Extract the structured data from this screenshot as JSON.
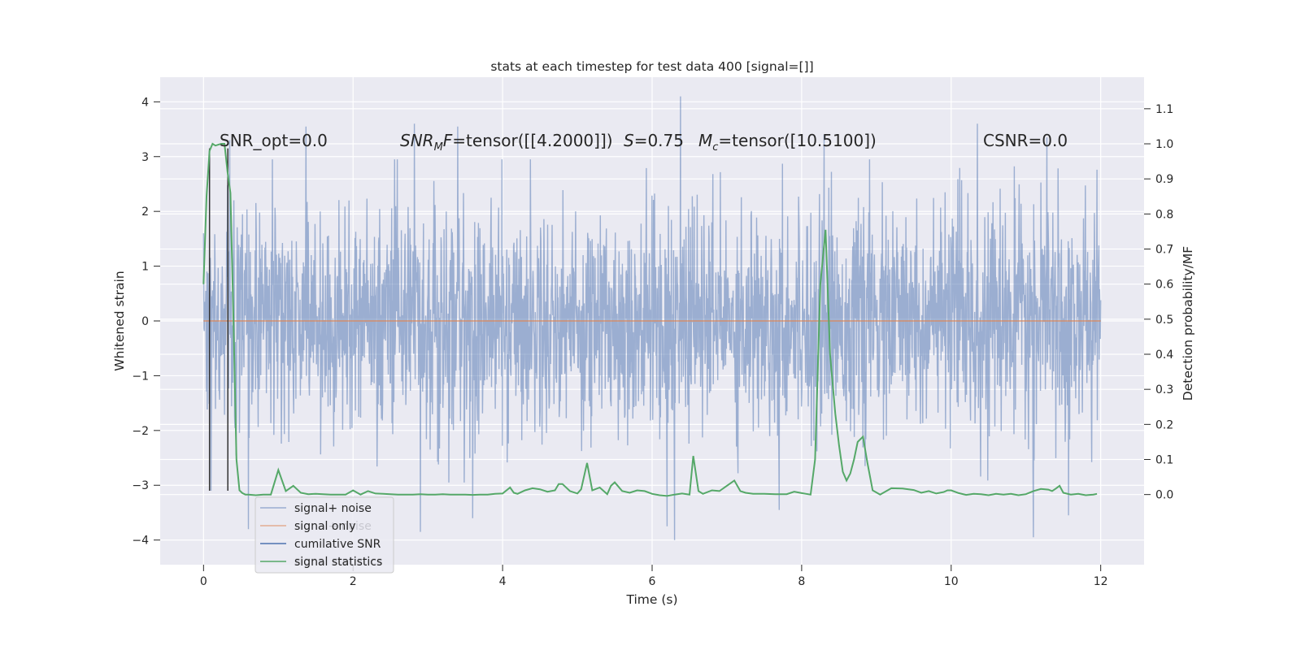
{
  "chart_data": {
    "type": "line",
    "title": "stats at each timestep for test data 400 [signal=[]]",
    "xlabel": "Time (s)",
    "ylabel_left": "Whitened strain",
    "ylabel_right": "Detection probability/MF",
    "xlim": [
      -0.58,
      12.58
    ],
    "ylim_left": [
      -4.45,
      4.45
    ],
    "ylim_right": [
      -0.2,
      1.19
    ],
    "xticks": [
      {
        "value": 0,
        "label": "0"
      },
      {
        "value": 2,
        "label": "2"
      },
      {
        "value": 4,
        "label": "4"
      },
      {
        "value": 6,
        "label": "6"
      },
      {
        "value": 8,
        "label": "8"
      },
      {
        "value": 10,
        "label": "10"
      },
      {
        "value": 12,
        "label": "12"
      }
    ],
    "yticks_left": [
      {
        "value": 4,
        "label": "4"
      },
      {
        "value": 3,
        "label": "3"
      },
      {
        "value": 2,
        "label": "2"
      },
      {
        "value": 1,
        "label": "1"
      },
      {
        "value": 0,
        "label": "0"
      },
      {
        "value": -1,
        "label": "−1"
      },
      {
        "value": -2,
        "label": "−2"
      },
      {
        "value": -3,
        "label": "−3"
      },
      {
        "value": -4,
        "label": "−4"
      }
    ],
    "yticks_right": [
      {
        "value": 1.1,
        "label": "1.1"
      },
      {
        "value": 1.0,
        "label": "1.0"
      },
      {
        "value": 0.9,
        "label": "0.9"
      },
      {
        "value": 0.8,
        "label": "0.8"
      },
      {
        "value": 0.7,
        "label": "0.7"
      },
      {
        "value": 0.6,
        "label": "0.6"
      },
      {
        "value": 0.5,
        "label": "0.5"
      },
      {
        "value": 0.4,
        "label": "0.4"
      },
      {
        "value": 0.3,
        "label": "0.3"
      },
      {
        "value": 0.2,
        "label": "0.2"
      },
      {
        "value": 0.1,
        "label": "0.1"
      },
      {
        "value": 0.0,
        "label": "0.0"
      }
    ],
    "annotations": {
      "snr_opt": "SNR_opt=0.0",
      "snr_mf_sym": "SNR",
      "snr_mf_sub": "M",
      "snr_mf_sym2": "F",
      "snr_mf_val": "=tensor([[4.2000]])",
      "s_sym": "S",
      "s_val": "=0.75",
      "mc_sym": "M",
      "mc_sub": "c",
      "mc_val": "=tensor([10.5100])",
      "csnr": "CSNR=0.0"
    },
    "legend": {
      "position": "lower-left",
      "entries": [
        "signal+ noise",
        "signal only",
        "cumilative SNR",
        "signal statistics"
      ],
      "ghost_entries": [
        "signal+ noise",
        "signal statistics"
      ]
    },
    "series": [
      {
        "name": "signal+ noise",
        "axis": "left",
        "color": "#4c72b0",
        "description_values": {
          "duration_s": 12.0,
          "std": 1.0,
          "min": -4.0,
          "max": 4.1
        },
        "peaks": [
          [
            0.0,
            1.6
          ],
          [
            0.35,
            3.3
          ],
          [
            1.37,
            3.55
          ],
          [
            2.82,
            3.6
          ],
          [
            3.4,
            3.55
          ],
          [
            6.38,
            4.1
          ],
          [
            8.3,
            3.4
          ],
          [
            10.35,
            3.6
          ],
          [
            11.28,
            3.35
          ]
        ],
        "troughs": [
          [
            0.1,
            -3.1
          ],
          [
            0.6,
            -3.8
          ],
          [
            2.9,
            -3.85
          ],
          [
            3.6,
            -3.6
          ],
          [
            6.3,
            -4.0
          ],
          [
            6.2,
            -3.75
          ],
          [
            7.7,
            -3.45
          ],
          [
            11.1,
            -3.95
          ],
          [
            11.57,
            -3.55
          ]
        ]
      },
      {
        "name": "signal only",
        "axis": "left",
        "color": "#dd8452",
        "x": [
          0,
          12
        ],
        "y": [
          0,
          0
        ]
      },
      {
        "name": "cumilative SNR",
        "axis": "left",
        "color": "#4c72b0",
        "x": [],
        "y": []
      },
      {
        "name": "signal statistics",
        "axis": "right",
        "color": "#55a868",
        "x": [
          0,
          0.04,
          0.08,
          0.12,
          0.16,
          0.2,
          0.24,
          0.28,
          0.32,
          0.36,
          0.4,
          0.44,
          0.48,
          0.52,
          0.56,
          0.6,
          0.7,
          0.8,
          0.9,
          1.0,
          1.1,
          1.2,
          1.3,
          1.4,
          1.5,
          1.6,
          1.7,
          1.8,
          1.9,
          2.0,
          2.1,
          2.2,
          2.3,
          2.4,
          2.5,
          2.6,
          2.7,
          2.8,
          2.9,
          3.0,
          3.1,
          3.2,
          3.3,
          3.4,
          3.5,
          3.6,
          3.7,
          3.8,
          3.9,
          4.0,
          4.1,
          4.15,
          4.2,
          4.3,
          4.4,
          4.5,
          4.6,
          4.7,
          4.75,
          4.8,
          4.9,
          5.0,
          5.05,
          5.13,
          5.2,
          5.3,
          5.4,
          5.45,
          5.5,
          5.6,
          5.7,
          5.8,
          5.9,
          6.0,
          6.1,
          6.2,
          6.3,
          6.4,
          6.5,
          6.55,
          6.62,
          6.68,
          6.8,
          6.9,
          7.0,
          7.1,
          7.18,
          7.25,
          7.35,
          7.5,
          7.65,
          7.8,
          7.9,
          8.0,
          8.06,
          8.12,
          8.18,
          8.25,
          8.32,
          8.38,
          8.45,
          8.5,
          8.55,
          8.6,
          8.65,
          8.7,
          8.75,
          8.82,
          8.88,
          8.95,
          9.05,
          9.2,
          9.35,
          9.5,
          9.6,
          9.7,
          9.8,
          9.9,
          9.95,
          10.0,
          10.1,
          10.2,
          10.3,
          10.4,
          10.5,
          10.6,
          10.7,
          10.8,
          10.9,
          11.0,
          11.1,
          11.2,
          11.3,
          11.35,
          11.4,
          11.45,
          11.5,
          11.6,
          11.7,
          11.8,
          11.9,
          11.95
        ],
        "y": [
          0.6,
          0.85,
          0.98,
          1.0,
          0.995,
          0.998,
          1.0,
          1.0,
          0.92,
          0.86,
          0.5,
          0.1,
          0.012,
          0.004,
          0.0,
          0.0,
          -0.002,
          0.0,
          0.0,
          0.07,
          0.01,
          0.025,
          0.005,
          0.001,
          0.002,
          0.001,
          0.0,
          0.0,
          0.0,
          0.012,
          0.0,
          0.01,
          0.003,
          0.002,
          0.001,
          0.0,
          0.0,
          0.0,
          0.001,
          0.0,
          0.0,
          0.001,
          0.0,
          0.0,
          0.0,
          -0.001,
          0.0,
          0.0,
          0.002,
          0.003,
          0.02,
          0.005,
          0.002,
          0.012,
          0.018,
          0.015,
          0.008,
          0.012,
          0.03,
          0.03,
          0.01,
          0.003,
          0.015,
          0.09,
          0.012,
          0.02,
          0.001,
          0.025,
          0.035,
          0.01,
          0.005,
          0.012,
          0.01,
          0.002,
          -0.002,
          -0.004,
          0.0,
          0.003,
          0.0,
          0.11,
          0.01,
          0.002,
          0.012,
          0.01,
          0.025,
          0.04,
          0.01,
          0.005,
          0.002,
          0.002,
          0.001,
          0.001,
          0.008,
          0.004,
          0.002,
          0.0,
          0.1,
          0.6,
          0.755,
          0.4,
          0.23,
          0.14,
          0.065,
          0.04,
          0.06,
          0.1,
          0.15,
          0.165,
          0.09,
          0.012,
          0.0,
          0.018,
          0.017,
          0.013,
          0.005,
          0.01,
          0.003,
          0.007,
          0.012,
          0.012,
          0.004,
          -0.001,
          0.002,
          0.001,
          -0.002,
          0.002,
          0.0,
          0.002,
          -0.002,
          0.001,
          0.01,
          0.016,
          0.014,
          0.01,
          0.017,
          0.025,
          0.005,
          0.0,
          0.002,
          -0.002,
          0.0,
          0.002
        ]
      }
    ],
    "vertical_markers": [
      {
        "x": 0.08,
        "y_from": -3.1,
        "y_to": 3.15,
        "color": "#333333"
      },
      {
        "x": 0.325,
        "y_from": -3.1,
        "y_to": 3.15,
        "color": "#333333"
      }
    ],
    "background": "#eaeaf2",
    "grid": true
  }
}
